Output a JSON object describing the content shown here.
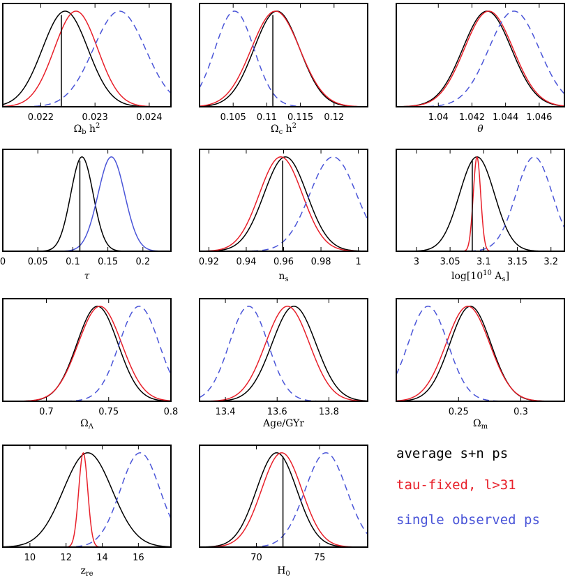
{
  "figure": {
    "line_styles": {
      "average": {
        "color": "#000000",
        "dash": false
      },
      "taufixed": {
        "color": "#e8202a",
        "dash": false
      },
      "single": {
        "color": "#4a55d8",
        "dash": true
      },
      "single_tau": {
        "color": "#4a55d8",
        "dash": false
      }
    }
  },
  "legend": {
    "items": [
      {
        "label": "average s+n ps",
        "color": "#000000"
      },
      {
        "label": "tau-fixed, l>31",
        "color": "#e8202a"
      },
      {
        "label": "single observed ps",
        "color": "#4a55d8"
      }
    ]
  },
  "chart_data": [
    {
      "type": "line",
      "panel": "omega_b",
      "xlabel": "Ω_b h²",
      "xlim": [
        0.0213,
        0.0244
      ],
      "ylim": [
        0,
        1.08
      ],
      "ticks": [
        0.022,
        0.023,
        0.024
      ],
      "tick_labels": [
        "0.022",
        "0.023",
        "0.024"
      ],
      "marker": 0.02238,
      "series": [
        {
          "name": "average s+n ps",
          "style": "average",
          "mean": 0.02245,
          "sigma": 0.00042
        },
        {
          "name": "tau-fixed, l>31",
          "style": "taufixed",
          "mean": 0.02265,
          "sigma": 0.0004
        },
        {
          "name": "single observed ps",
          "style": "single",
          "mean": 0.02345,
          "sigma": 0.00048
        }
      ]
    },
    {
      "type": "line",
      "panel": "omega_c",
      "xlabel": "Ω_c h²",
      "xlim": [
        0.1,
        0.125
      ],
      "ylim": [
        0,
        1.08
      ],
      "ticks": [
        0.105,
        0.11,
        0.115,
        0.12
      ],
      "tick_labels": [
        "0.105",
        "0.11",
        "0.115",
        "0.12"
      ],
      "marker": 0.1109,
      "series": [
        {
          "name": "average s+n ps",
          "style": "average",
          "mean": 0.1115,
          "sigma": 0.0034
        },
        {
          "name": "tau-fixed, l>31",
          "style": "taufixed",
          "mean": 0.1113,
          "sigma": 0.0036
        },
        {
          "name": "single observed ps",
          "style": "single",
          "mean": 0.1052,
          "sigma": 0.0029
        }
      ]
    },
    {
      "type": "line",
      "panel": "theta",
      "xlabel": "θ",
      "xlim": [
        1.0375,
        1.0475
      ],
      "ylim": [
        0,
        1.08
      ],
      "ticks": [
        1.04,
        1.042,
        1.044,
        1.046
      ],
      "tick_labels": [
        "1.04",
        "1.042",
        "1.044",
        "1.046"
      ],
      "marker": null,
      "series": [
        {
          "name": "average s+n ps",
          "style": "average",
          "mean": 1.0429,
          "sigma": 0.00145
        },
        {
          "name": "tau-fixed, l>31",
          "style": "taufixed",
          "mean": 1.043,
          "sigma": 0.00145
        },
        {
          "name": "single observed ps",
          "style": "single",
          "mean": 1.0445,
          "sigma": 0.0015
        }
      ]
    },
    {
      "type": "line",
      "panel": "tau",
      "xlabel": "τ",
      "xlim": [
        0,
        0.24
      ],
      "ylim": [
        0,
        1.08
      ],
      "ticks": [
        0,
        0.05,
        0.1,
        0.15,
        0.2
      ],
      "tick_labels": [
        "0",
        "0.05",
        "0.1",
        "0.15",
        "0.2"
      ],
      "marker": 0.11,
      "series": [
        {
          "name": "average s+n ps",
          "style": "average",
          "mean": 0.113,
          "sigma": 0.016
        },
        {
          "name": "single observed ps",
          "style": "single_tau",
          "mean": 0.155,
          "sigma": 0.019
        }
      ]
    },
    {
      "type": "line",
      "panel": "ns",
      "xlabel": "n_s",
      "xlim": [
        0.915,
        1.005
      ],
      "ylim": [
        0,
        1.08
      ],
      "ticks": [
        0.92,
        0.94,
        0.96,
        0.98,
        1.0
      ],
      "tick_labels": [
        "0.92",
        "0.94",
        "0.96",
        "0.98",
        "1"
      ],
      "marker": 0.9595,
      "series": [
        {
          "name": "average s+n ps",
          "style": "average",
          "mean": 0.961,
          "sigma": 0.0115
        },
        {
          "name": "tau-fixed, l>31",
          "style": "taufixed",
          "mean": 0.9585,
          "sigma": 0.0115
        },
        {
          "name": "single observed ps",
          "style": "single",
          "mean": 0.9865,
          "sigma": 0.0125
        }
      ]
    },
    {
      "type": "line",
      "panel": "logAs",
      "xlabel": "log[10¹⁰ A_s]",
      "xlim": [
        2.97,
        3.22
      ],
      "ylim": [
        0,
        1.08
      ],
      "ticks": [
        3.0,
        3.05,
        3.1,
        3.15,
        3.2
      ],
      "tick_labels": [
        "3",
        "3.05",
        "3.1",
        "3.15",
        "3.2"
      ],
      "marker": 3.083,
      "series": [
        {
          "name": "average s+n ps",
          "style": "average",
          "mean": 3.09,
          "sigma": 0.026
        },
        {
          "name": "tau-fixed, l>31",
          "style": "taufixed",
          "mean": 3.09,
          "sigma": 0.0055
        },
        {
          "name": "single observed ps",
          "style": "single",
          "mean": 3.175,
          "sigma": 0.027
        }
      ]
    },
    {
      "type": "line",
      "panel": "omega_lambda",
      "xlabel": "Ω_Λ",
      "xlim": [
        0.665,
        0.8
      ],
      "ylim": [
        0,
        1.08
      ],
      "ticks": [
        0.7,
        0.75,
        0.8
      ],
      "tick_labels": [
        "0.7",
        "0.75",
        "0.8"
      ],
      "marker": null,
      "series": [
        {
          "name": "average s+n ps",
          "style": "average",
          "mean": 0.741,
          "sigma": 0.0165
        },
        {
          "name": "tau-fixed, l>31",
          "style": "taufixed",
          "mean": 0.743,
          "sigma": 0.0175
        },
        {
          "name": "single observed ps",
          "style": "single",
          "mean": 0.7745,
          "sigma": 0.016
        }
      ]
    },
    {
      "type": "line",
      "panel": "age",
      "xlabel": "Age/GYr",
      "xlim": [
        13.3,
        13.95
      ],
      "ylim": [
        0,
        1.08
      ],
      "ticks": [
        13.4,
        13.6,
        13.8
      ],
      "tick_labels": [
        "13.4",
        "13.6",
        "13.8"
      ],
      "marker": null,
      "series": [
        {
          "name": "average s+n ps",
          "style": "average",
          "mean": 13.665,
          "sigma": 0.085
        },
        {
          "name": "tau-fixed, l>31",
          "style": "taufixed",
          "mean": 13.64,
          "sigma": 0.085
        },
        {
          "name": "single observed ps",
          "style": "single",
          "mean": 13.49,
          "sigma": 0.075
        }
      ]
    },
    {
      "type": "line",
      "panel": "omega_m",
      "xlabel": "Ω_m",
      "xlim": [
        0.2,
        0.335
      ],
      "ylim": [
        0,
        1.08
      ],
      "ticks": [
        0.25,
        0.3
      ],
      "tick_labels": [
        "0.25",
        "0.3"
      ],
      "marker": null,
      "series": [
        {
          "name": "average s+n ps",
          "style": "average",
          "mean": 0.2595,
          "sigma": 0.0165
        },
        {
          "name": "tau-fixed, l>31",
          "style": "taufixed",
          "mean": 0.2575,
          "sigma": 0.0175
        },
        {
          "name": "single observed ps",
          "style": "single",
          "mean": 0.2255,
          "sigma": 0.016
        }
      ]
    },
    {
      "type": "line",
      "panel": "zre",
      "xlabel": "z_re",
      "xlim": [
        8.5,
        17.8
      ],
      "ylim": [
        0,
        1.08
      ],
      "ticks": [
        10,
        12,
        14,
        16
      ],
      "tick_labels": [
        "10",
        "12",
        "14",
        "16"
      ],
      "marker": null,
      "series": [
        {
          "name": "average s+n ps",
          "style": "average",
          "mean": 13.2,
          "sigma": 1.35
        },
        {
          "name": "tau-fixed, l>31",
          "style": "taufixed",
          "mean": 12.95,
          "sigma": 0.25
        },
        {
          "name": "single observed ps",
          "style": "single",
          "mean": 16.1,
          "sigma": 1.1
        }
      ]
    },
    {
      "type": "line",
      "panel": "h0",
      "xlabel": "H_0",
      "xlim": [
        65.5,
        78.8
      ],
      "ylim": [
        0,
        1.08
      ],
      "ticks": [
        70,
        75
      ],
      "tick_labels": [
        "70",
        "75"
      ],
      "marker": 72.1,
      "series": [
        {
          "name": "average s+n ps",
          "style": "average",
          "mean": 71.6,
          "sigma": 1.6
        },
        {
          "name": "tau-fixed, l>31",
          "style": "taufixed",
          "mean": 72.0,
          "sigma": 1.6
        },
        {
          "name": "single observed ps",
          "style": "single",
          "mean": 75.5,
          "sigma": 1.65
        }
      ]
    }
  ]
}
